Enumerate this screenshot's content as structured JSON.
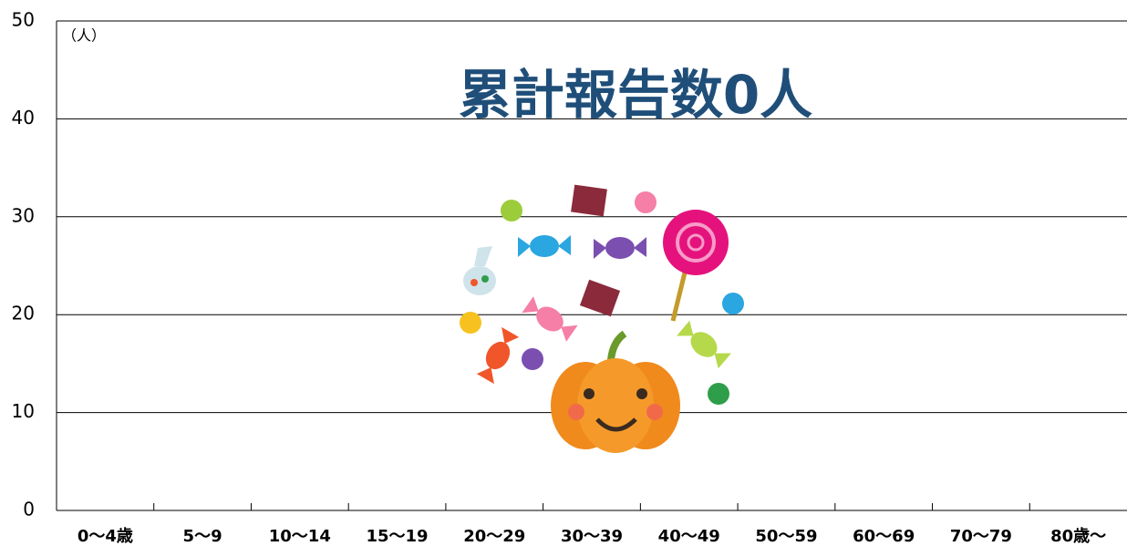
{
  "chart_data": {
    "type": "bar",
    "annotation": "累計報告数0人",
    "ylabel": "（人）",
    "categories": [
      "0〜4歳",
      "5〜9",
      "10〜14",
      "15〜19",
      "20〜29",
      "30〜39",
      "40〜49",
      "50〜59",
      "60〜69",
      "70〜79",
      "80歳〜"
    ],
    "values": [
      0,
      0,
      0,
      0,
      0,
      0,
      0,
      0,
      0,
      0,
      0
    ],
    "ylim": [
      0,
      50
    ],
    "yticks": [
      0,
      10,
      20,
      30,
      40,
      50
    ],
    "grid": true
  }
}
